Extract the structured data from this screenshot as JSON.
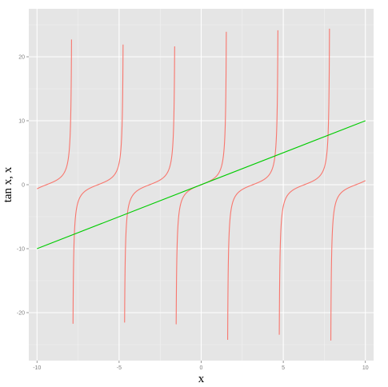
{
  "chart_data": {
    "type": "line",
    "title": "",
    "xlabel": "x",
    "ylabel": "tan x, x",
    "xlim": [
      -10.5,
      10.5
    ],
    "ylim": [
      -27.5,
      27.5
    ],
    "x_ticks": [
      -10,
      -5,
      0,
      5,
      10
    ],
    "x_tick_labels": [
      "-10",
      "-5",
      "0",
      "5",
      "10"
    ],
    "y_ticks": [
      -20,
      -10,
      0,
      10,
      20
    ],
    "y_tick_labels": [
      "-20",
      "-10",
      "0",
      "10",
      "20"
    ],
    "grid": true,
    "legend": "none",
    "series": [
      {
        "function": "tan(x)",
        "color": "#f8766d",
        "x_range": [
          -10,
          10
        ],
        "branches": [
          [
            -10,
            -7.898
          ],
          [
            -7.808,
            -4.758
          ],
          [
            -4.666,
            -1.617
          ],
          [
            -1.525,
            1.529
          ],
          [
            1.612,
            4.671
          ],
          [
            4.755,
            7.813
          ],
          [
            7.895,
            10
          ]
        ]
      },
      {
        "function": "x",
        "color": "#00cc00",
        "x": [
          -10,
          10
        ],
        "y": [
          -10,
          10
        ]
      }
    ]
  }
}
